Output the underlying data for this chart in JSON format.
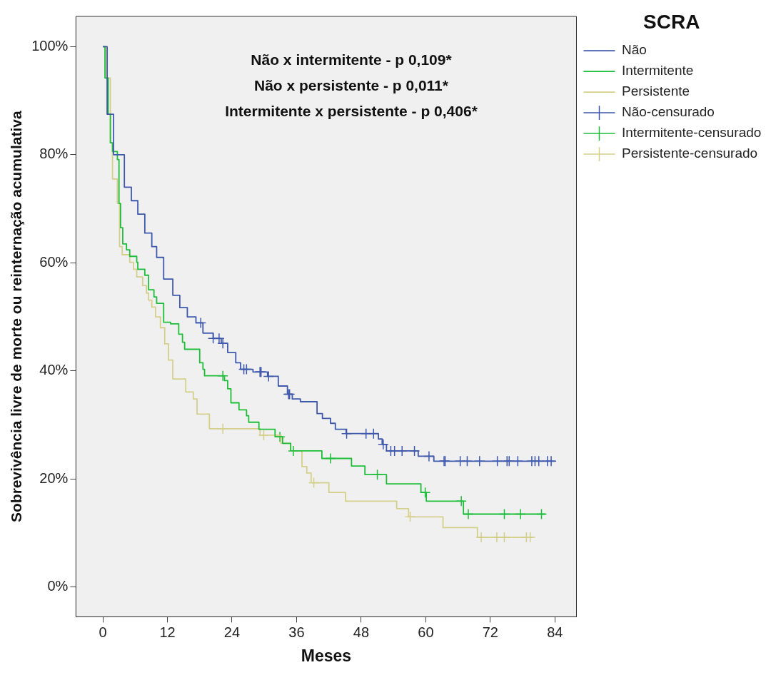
{
  "chart_data": {
    "type": "step",
    "xlabel": "Meses",
    "ylabel": "Sobrevivência livre de morte ou reinternação acumulativa",
    "legend_title": "SCRA",
    "legend": "right",
    "annotations": [
      "Não x intermitente - p 0,109*",
      "Não x persistente - p 0,011*",
      "Intermitente x persistente - p 0,406*"
    ],
    "xlim": [
      -5,
      88
    ],
    "xticks": [
      0,
      12,
      24,
      36,
      48,
      60,
      72,
      84
    ],
    "ylim": [
      -5.5,
      105.6
    ],
    "yticks": [
      {
        "value": 0,
        "label": "0%"
      },
      {
        "value": 20,
        "label": "20%"
      },
      {
        "value": 40,
        "label": "40%"
      },
      {
        "value": 60,
        "label": "60%"
      },
      {
        "value": 80,
        "label": "80%"
      },
      {
        "value": 100,
        "label": "100%"
      }
    ],
    "series": [
      {
        "name": "Não",
        "color": "#3e58ac",
        "x": [
          0,
          0.8,
          2,
          4,
          5.3,
          6.5,
          7.8,
          9.1,
          10,
          11.3,
          13,
          14.3,
          15.7,
          17.3,
          18.6,
          20.5,
          22,
          23.2,
          24.7,
          25.6,
          27.9,
          30.6,
          32.6,
          34.3,
          35.2,
          36.7,
          39.8,
          40.8,
          42.3,
          43.2,
          45.2,
          51.2,
          51.9,
          52.7,
          58.6,
          61.5,
          84
        ],
        "values": [
          100,
          87.5,
          80,
          74,
          71.5,
          69,
          65.5,
          63,
          61,
          57,
          54,
          51.7,
          50,
          48.9,
          47,
          46,
          45.1,
          43.4,
          41.5,
          40.3,
          39.8,
          39,
          37.2,
          35.7,
          34.8,
          34.3,
          32.1,
          31.2,
          30.3,
          29.2,
          28.4,
          27.4,
          26.4,
          25.2,
          24.2,
          23.3,
          23.3
        ]
      },
      {
        "name": "Intermitente",
        "color": "#1fbe3a",
        "x": [
          0,
          0.4,
          1,
          1.4,
          1.8,
          2.7,
          3,
          3.3,
          3.7,
          4.4,
          5,
          6.3,
          6.5,
          7.8,
          8.5,
          9.5,
          10,
          11.3,
          12.6,
          14.1,
          14.8,
          15.2,
          18,
          18.6,
          18.9,
          22.6,
          23.2,
          23.8,
          25.3,
          26.7,
          27.1,
          29,
          32,
          33.4,
          34.9,
          40.7,
          46.2,
          48.7,
          52.7,
          59.1,
          60.1,
          67,
          82.2
        ],
        "values": [
          100,
          94.2,
          87.5,
          82.2,
          80.6,
          79.1,
          71,
          66.5,
          63.5,
          62.4,
          61.2,
          60.1,
          58.8,
          57.7,
          55,
          53.7,
          52.5,
          49,
          48.7,
          46.8,
          45.3,
          44,
          41.5,
          40.3,
          39.1,
          38.2,
          36.7,
          34.1,
          32.8,
          31.7,
          30.5,
          29.2,
          27.8,
          26.6,
          25.2,
          23.8,
          22.4,
          20.8,
          19.1,
          17.5,
          15.9,
          13.5,
          13.5
        ]
      },
      {
        "name": "Persistente",
        "color": "#d4cf8b",
        "x": [
          0,
          0.5,
          1.4,
          1.8,
          2.7,
          3.1,
          3.6,
          5,
          5.7,
          6.3,
          7.4,
          8.1,
          8.5,
          9.1,
          9.8,
          10.7,
          11.5,
          12.2,
          13,
          15.4,
          16.8,
          17.5,
          19.8,
          29.2,
          33.1,
          34.9,
          37,
          37.9,
          38.7,
          42,
          45.1,
          54.6,
          56.8,
          63.2,
          69.6,
          79.9
        ],
        "values": [
          100,
          94.2,
          82.2,
          75.5,
          71,
          63,
          61.5,
          60.1,
          58.8,
          57.4,
          55.8,
          54.4,
          53.1,
          51.8,
          50,
          48,
          45,
          42,
          38.5,
          36.1,
          34.8,
          32,
          29.3,
          28.1,
          26.6,
          25.2,
          22.3,
          21.1,
          19.3,
          17.5,
          15.9,
          14.5,
          13,
          11,
          9.2,
          9.2
        ]
      },
      {
        "name": "Não-censurado",
        "type": "scatter",
        "marker": "cross",
        "color": "#3e58ac",
        "x": [
          18.2,
          20.5,
          21.6,
          22.3,
          26.2,
          26.7,
          29.2,
          29.4,
          30.8,
          34.5,
          34.7,
          45.3,
          48.9,
          50.3,
          52.1,
          53.5,
          54.2,
          55.6,
          57.9,
          60.6,
          63.4,
          63.6,
          66.4,
          67.7,
          70,
          73.3,
          75.1,
          75.5,
          77.1,
          79.7,
          80.3,
          81,
          82.6,
          83.3
        ],
        "values": [
          48.9,
          46,
          46,
          45.1,
          40.3,
          40.3,
          39.8,
          39.8,
          39,
          35.7,
          35.7,
          28.4,
          28.4,
          28.4,
          26.4,
          25.2,
          25.2,
          25.2,
          25.2,
          24.2,
          23.3,
          23.3,
          23.3,
          23.3,
          23.3,
          23.3,
          23.3,
          23.3,
          23.3,
          23.3,
          23.3,
          23.3,
          23.3,
          23.3
        ]
      },
      {
        "name": "Intermitente-censurado",
        "type": "scatter",
        "marker": "cross",
        "color": "#1fbe3a",
        "x": [
          22.3,
          32.9,
          35.4,
          42.3,
          51,
          59.9,
          66.6,
          67.9,
          74.6,
          77.6,
          81.5
        ],
        "values": [
          39.1,
          27.8,
          25.2,
          23.8,
          20.8,
          17.5,
          15.9,
          13.5,
          13.5,
          13.5,
          13.5
        ]
      },
      {
        "name": "Persistente-censurado",
        "type": "scatter",
        "marker": "cross",
        "color": "#d4cf8b",
        "x": [
          22.3,
          29.9,
          39.2,
          57.1,
          70.3,
          73.2,
          74.6,
          78.7,
          79.4
        ],
        "values": [
          29.3,
          28.1,
          19.3,
          13,
          9.2,
          9.2,
          9.2,
          9.2,
          9.2
        ]
      }
    ]
  }
}
